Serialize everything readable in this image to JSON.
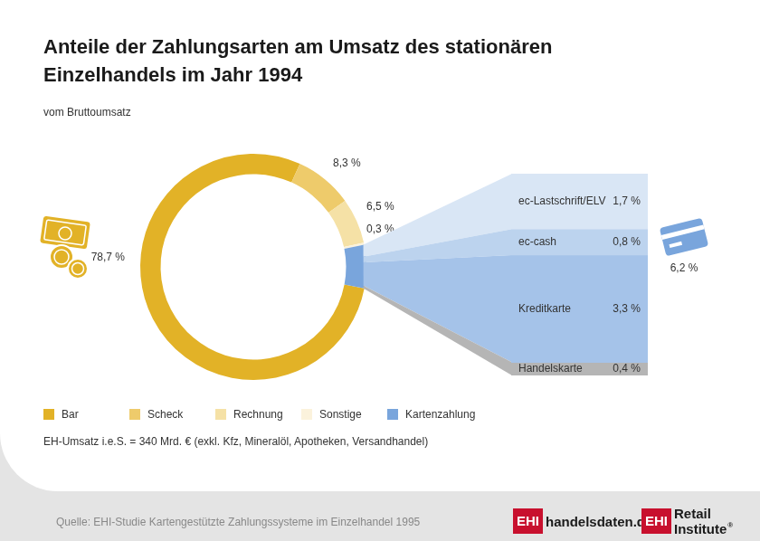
{
  "chart_data": [
    {
      "type": "doughnut",
      "title": "Anteile der Zahlungsarten am Umsatz des stationären Einzelhandels im Jahr 1994",
      "subtitle": "vom Bruttoumsatz",
      "categories": [
        "Bar",
        "Scheck",
        "Rechnung",
        "Sonstige",
        "Kartenzahlung"
      ],
      "values": [
        78.7,
        8.3,
        6.5,
        0.3,
        6.2
      ],
      "value_labels": [
        "78,7 %",
        "8,3 %",
        "6,5 %",
        "0,3 %",
        "6,2 %"
      ],
      "colors": [
        "#e2b227",
        "#eecb6b",
        "#f5e1a6",
        "#fbf2dc",
        "#79a5dc"
      ],
      "data_labels": true,
      "legend": "bottom"
    },
    {
      "type": "bar",
      "stacked": true,
      "categories": [
        null
      ],
      "series": [
        {
          "name": "ec-Lastschrift/ELV",
          "color": "#d9e6f5",
          "values": [
            1.7
          ],
          "value_labels": [
            "1,7 %"
          ]
        },
        {
          "name": "ec-cash",
          "color": "#bcd3ee",
          "values": [
            0.8
          ],
          "value_labels": [
            "0,8 %"
          ]
        },
        {
          "name": "Kreditkarte",
          "color": "#a5c3e9",
          "values": [
            3.3
          ],
          "value_labels": [
            "3,3 %"
          ]
        },
        {
          "name": "Handelskarte",
          "color": "#b5b5b5",
          "values": [
            0.4
          ],
          "value_labels": [
            "0,4 %"
          ]
        }
      ],
      "ylim": [
        0,
        6.2
      ],
      "grid": false,
      "tick_labels": false,
      "data_labels": true
    }
  ],
  "footnote": "EH-Umsatz i.e.S. = 340 Mrd. € (exkl. Kfz, Mineralöl, Apotheken, Versandhandel)",
  "source": "Quelle: EHI-Studie Kartengestützte Zahlungssysteme im Einzelhandel 1995",
  "logos": [
    {
      "mark": "EHI",
      "text": "handelsdaten.de"
    },
    {
      "mark": "EHI",
      "text": "Retail Institute",
      "sup": "®"
    }
  ]
}
